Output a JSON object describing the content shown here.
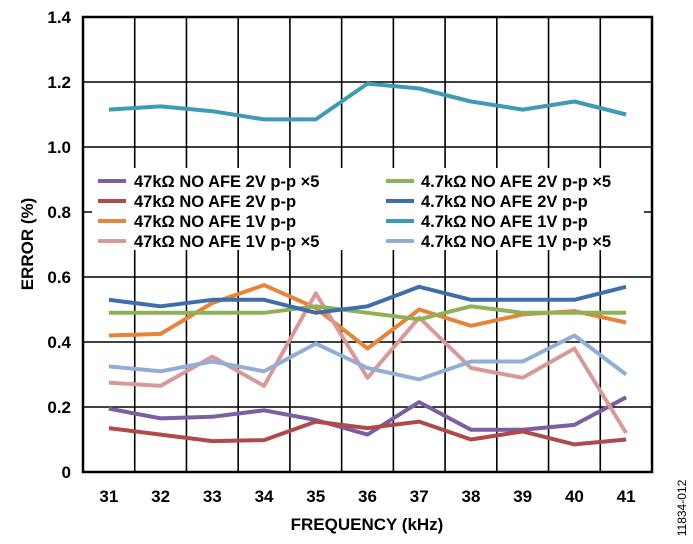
{
  "chart_data": {
    "type": "line",
    "title": "",
    "xlabel": "FREQUENCY (kHz)",
    "ylabel": "ERROR (%)",
    "x": [
      31,
      32,
      33,
      34,
      35,
      36,
      37,
      38,
      39,
      40,
      41
    ],
    "xticks": [
      "31",
      "32",
      "33",
      "34",
      "35",
      "36",
      "37",
      "38",
      "39",
      "40",
      "41"
    ],
    "yticks": [
      "0",
      "0.2",
      "0.4",
      "0.6",
      "0.8",
      "1.0",
      "1.2",
      "1.4"
    ],
    "ylim": [
      0,
      1.4
    ],
    "grid": true,
    "legend_position": "center",
    "figure_id": "11834-012",
    "series": [
      {
        "name": "47kΩ NO AFE 2V p-p ×5",
        "color": "#7b5fa0",
        "values": [
          0.195,
          0.165,
          0.17,
          0.19,
          0.16,
          0.115,
          0.215,
          0.13,
          0.13,
          0.145,
          0.23
        ]
      },
      {
        "name": "47kΩ NO AFE 2V p-p",
        "color": "#b04a4a",
        "values": [
          0.135,
          0.115,
          0.095,
          0.098,
          0.155,
          0.135,
          0.155,
          0.1,
          0.125,
          0.085,
          0.1
        ]
      },
      {
        "name": "47kΩ NO AFE 1V p-p",
        "color": "#e5843a",
        "values": [
          0.42,
          0.425,
          0.52,
          0.575,
          0.505,
          0.38,
          0.5,
          0.45,
          0.485,
          0.495,
          0.46
        ]
      },
      {
        "name": "47kΩ NO AFE 1V p-p ×5",
        "color": "#d99999",
        "values": [
          0.275,
          0.265,
          0.355,
          0.265,
          0.55,
          0.29,
          0.475,
          0.32,
          0.29,
          0.38,
          0.12
        ]
      },
      {
        "name": "4.7kΩ NO AFE 2V p-p ×5",
        "color": "#8fb054",
        "values": [
          0.49,
          0.49,
          0.49,
          0.49,
          0.51,
          0.49,
          0.47,
          0.51,
          0.49,
          0.49,
          0.49
        ]
      },
      {
        "name": "4.7kΩ NO AFE 2V p-p",
        "color": "#3f6fab",
        "values": [
          0.53,
          0.51,
          0.53,
          0.53,
          0.49,
          0.51,
          0.57,
          0.53,
          0.53,
          0.53,
          0.57
        ]
      },
      {
        "name": "4.7kΩ NO AFE 1V p-p",
        "color": "#3f9ab5",
        "values": [
          1.115,
          1.125,
          1.11,
          1.085,
          1.085,
          1.195,
          1.18,
          1.14,
          1.115,
          1.14,
          1.1
        ]
      },
      {
        "name": "4.7kΩ NO AFE 1V p-p ×5",
        "color": "#93aed6",
        "values": [
          0.325,
          0.31,
          0.34,
          0.31,
          0.395,
          0.32,
          0.285,
          0.34,
          0.34,
          0.42,
          0.3
        ]
      }
    ]
  }
}
